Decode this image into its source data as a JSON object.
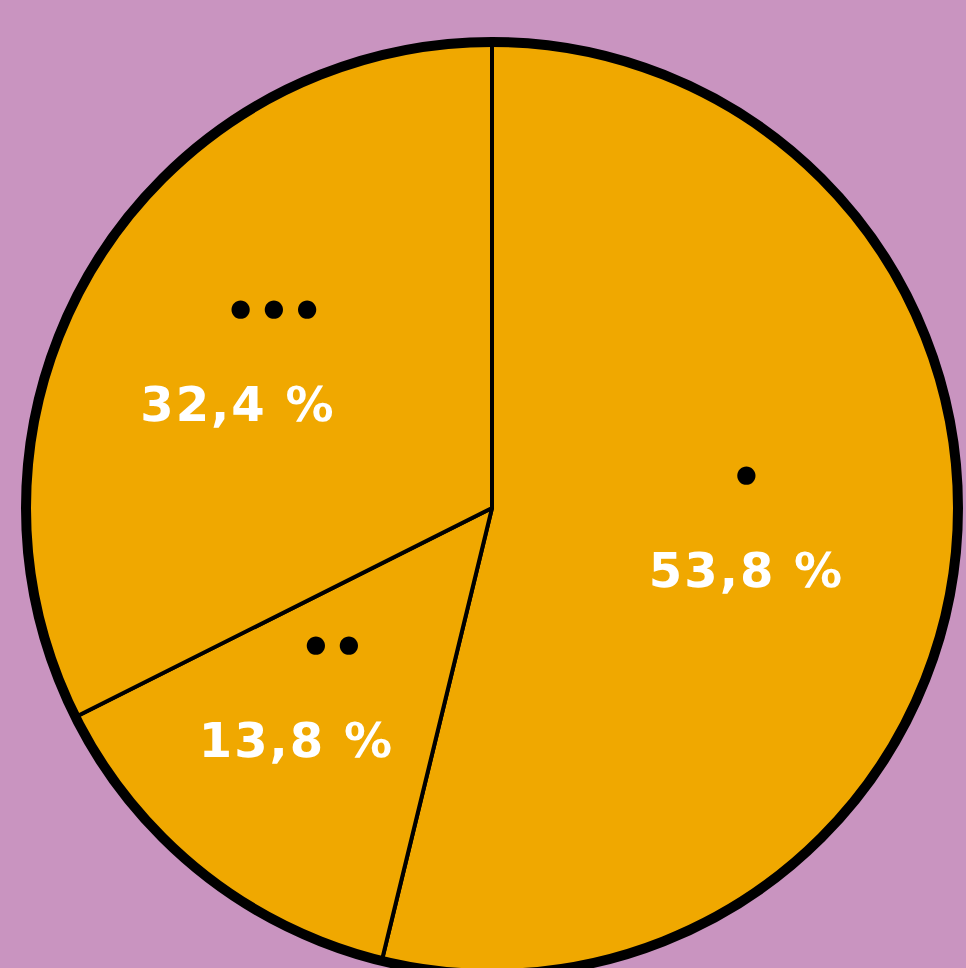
{
  "chart_data": {
    "type": "pie",
    "categories": [
      "•",
      "••",
      "•••"
    ],
    "values": [
      53.8,
      13.8,
      32.4
    ],
    "colors": [
      "#f0a800",
      "#f0a800",
      "#f0a800"
    ],
    "value_labels": [
      "53,8 %",
      "13,8 %",
      "32,4 %"
    ]
  }
}
